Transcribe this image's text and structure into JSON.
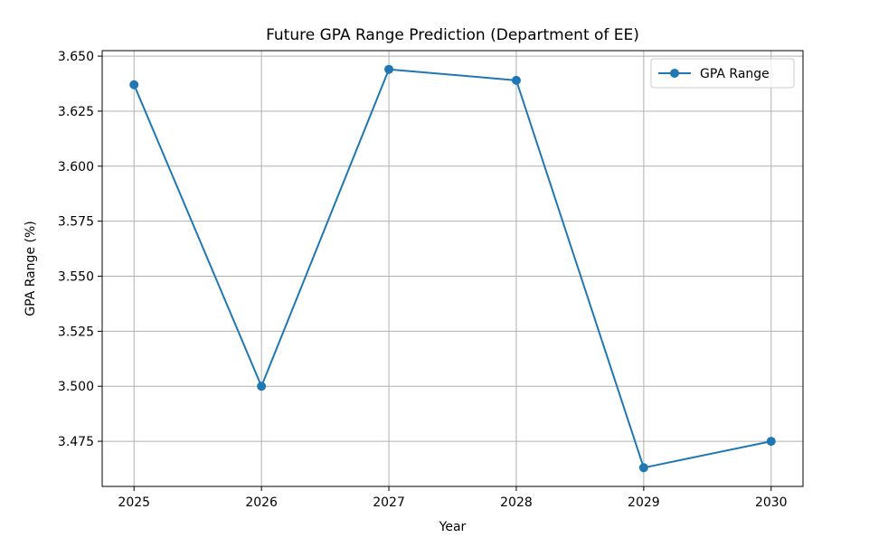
{
  "chart_data": {
    "type": "line",
    "title": "Future GPA Range Prediction (Department of EE)",
    "xlabel": "Year",
    "ylabel": "GPA Range (%)",
    "x": [
      2025,
      2026,
      2027,
      2028,
      2029,
      2030
    ],
    "series": [
      {
        "name": "GPA Range",
        "values": [
          3.637,
          3.5,
          3.644,
          3.639,
          3.463,
          3.475
        ]
      }
    ],
    "xlim": [
      2024.75,
      2030.25
    ],
    "ylim": [
      3.4545,
      3.6525
    ],
    "xticks": [
      2025,
      2026,
      2027,
      2028,
      2029,
      2030
    ],
    "xtick_labels": [
      "2025",
      "2026",
      "2027",
      "2028",
      "2029",
      "2030"
    ],
    "yticks": [
      3.475,
      3.5,
      3.525,
      3.55,
      3.575,
      3.6,
      3.625,
      3.65
    ],
    "ytick_labels": [
      "3.475",
      "3.500",
      "3.525",
      "3.550",
      "3.575",
      "3.600",
      "3.625",
      "3.650"
    ],
    "grid": true,
    "legend_position": "top-right",
    "line_color": "#1f77b4",
    "grid_color": "#b0b0b0"
  }
}
